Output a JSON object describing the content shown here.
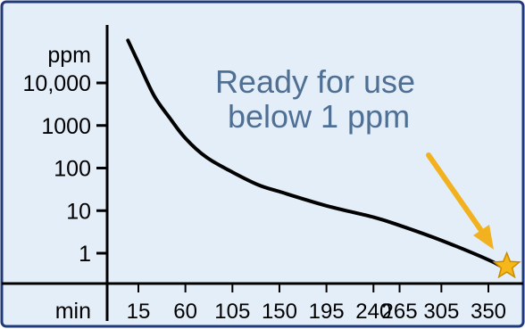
{
  "chart_data": {
    "type": "line",
    "title": "",
    "xlabel": "min",
    "ylabel": "ppm",
    "y_scale": "log",
    "grid": false,
    "legend": "none",
    "x_tick_labels": [
      "15",
      "60",
      "105",
      "150",
      "195",
      "240",
      "265",
      "305",
      "350"
    ],
    "y_ticks": [
      {
        "label": "10,000",
        "value": 10000
      },
      {
        "label": "1000",
        "value": 1000
      },
      {
        "label": "100",
        "value": 100
      },
      {
        "label": "10",
        "value": 10
      },
      {
        "label": "1",
        "value": 1
      }
    ],
    "ylim": [
      0.2,
      100000
    ],
    "series": [
      {
        "color": "#000000",
        "points": [
          {
            "x": 5,
            "y": 100000
          },
          {
            "x": 15,
            "y": 30000
          },
          {
            "x": 30,
            "y": 5000
          },
          {
            "x": 45,
            "y": 1500
          },
          {
            "x": 60,
            "y": 500
          },
          {
            "x": 80,
            "y": 180
          },
          {
            "x": 105,
            "y": 80
          },
          {
            "x": 130,
            "y": 40
          },
          {
            "x": 150,
            "y": 28
          },
          {
            "x": 195,
            "y": 13
          },
          {
            "x": 240,
            "y": 7
          },
          {
            "x": 265,
            "y": 4.5
          },
          {
            "x": 305,
            "y": 2
          },
          {
            "x": 350,
            "y": 0.7
          },
          {
            "x": 365,
            "y": 0.45
          }
        ]
      }
    ],
    "annotation": {
      "text_lines": [
        "Ready for use",
        "below 1 ppm"
      ],
      "text_color": "#4f6f94",
      "arrow_color": "#f2b21f",
      "marker": "star",
      "marker_color": "#f6b71b"
    },
    "colors": {
      "background": "#e4eef8",
      "border": "#1f3a7a",
      "axis": "#000000"
    }
  }
}
